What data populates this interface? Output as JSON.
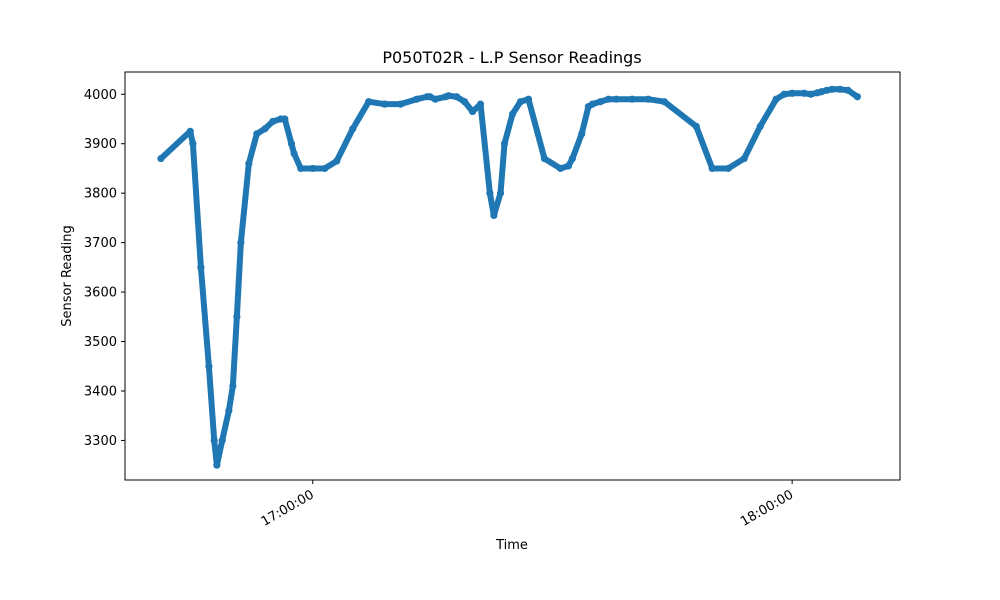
{
  "chart_data": {
    "type": "line",
    "title": "P050T02R - L.P Sensor Readings",
    "xlabel": "Time",
    "ylabel": "Sensor Reading",
    "x_ticks": [
      "17:00:00",
      "18:00:00"
    ],
    "y_ticks": [
      3300,
      3400,
      3500,
      3600,
      3700,
      3800,
      3900,
      4000
    ],
    "ylim": [
      3220,
      4045
    ],
    "xlim": [
      "16:36:30",
      "18:13:30"
    ],
    "grid": false,
    "series": [
      {
        "marker": "circle",
        "color": "#1f77b4",
        "x": [
          "16:41:00",
          "16:44:40",
          "16:45:00",
          "16:46:00",
          "16:47:00",
          "16:47:40",
          "16:48:00",
          "16:48:40",
          "16:49:30",
          "16:50:00",
          "16:50:30",
          "16:51:00",
          "16:52:00",
          "16:53:00",
          "16:54:00",
          "16:55:00",
          "16:56:00",
          "16:56:30",
          "16:57:20",
          "16:57:40",
          "16:58:30",
          "17:00:00",
          "17:01:30",
          "17:03:00",
          "17:05:00",
          "17:07:00",
          "17:09:00",
          "17:11:00",
          "17:13:00",
          "17:14:20",
          "17:14:40",
          "17:15:20",
          "17:16:40",
          "17:17:00",
          "17:18:00",
          "17:19:00",
          "17:20:00",
          "17:21:00",
          "17:22:10",
          "17:22:40",
          "17:23:30",
          "17:24:00",
          "17:25:00",
          "17:26:00",
          "17:27:00",
          "17:29:00",
          "17:31:00",
          "17:32:00",
          "17:32:30",
          "17:33:40",
          "17:34:30",
          "17:35:00",
          "17:36:00",
          "17:37:00",
          "17:38:00",
          "17:40:00",
          "17:42:00",
          "17:44:00",
          "17:48:00",
          "17:50:00",
          "17:52:00",
          "17:54:00",
          "17:56:00",
          "17:58:00",
          "17:59:00",
          "18:00:00",
          "18:01:30",
          "18:02:20",
          "18:03:10",
          "18:03:40",
          "18:04:20",
          "18:05:00",
          "18:06:00",
          "18:07:00",
          "18:08:10"
        ],
        "y": [
          3870,
          3925,
          3900,
          3650,
          3450,
          3300,
          3250,
          3300,
          3360,
          3410,
          3550,
          3700,
          3860,
          3920,
          3930,
          3945,
          3950,
          3950,
          3900,
          3880,
          3850,
          3850,
          3850,
          3865,
          3930,
          3985,
          3980,
          3980,
          3990,
          3995,
          3995,
          3990,
          3995,
          3997,
          3995,
          3985,
          3965,
          3980,
          3800,
          3755,
          3800,
          3900,
          3960,
          3985,
          3990,
          3870,
          3850,
          3855,
          3870,
          3920,
          3975,
          3980,
          3985,
          3990,
          3990,
          3990,
          3990,
          3985,
          3935,
          3850,
          3850,
          3870,
          3935,
          3990,
          4000,
          4002,
          4002,
          4000,
          4003,
          4005,
          4008,
          4010,
          4010,
          4008,
          3995
        ]
      }
    ]
  }
}
